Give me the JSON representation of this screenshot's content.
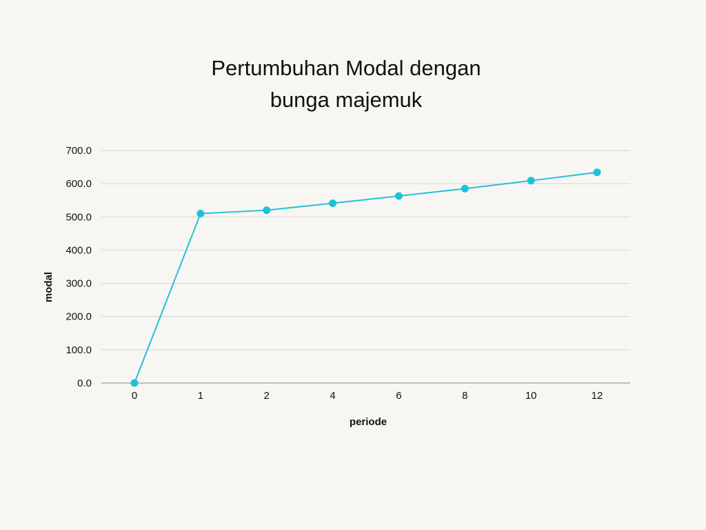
{
  "chart_data": {
    "type": "line",
    "title_lines": [
      "Pertumbuhan Modal dengan",
      "bunga majemuk"
    ],
    "xlabel": "periode",
    "ylabel": "modal",
    "categories": [
      "0",
      "1",
      "2",
      "4",
      "6",
      "8",
      "10",
      "12"
    ],
    "series": [
      {
        "values": [
          0,
          510,
          520,
          541,
          563,
          585,
          609,
          634
        ]
      }
    ],
    "ylim": [
      0,
      700
    ],
    "yticks": [
      "0.0",
      "100.0",
      "200.0",
      "300.0",
      "400.0",
      "500.0",
      "600.0",
      "700.0"
    ],
    "grid": true,
    "legend": "none",
    "colors": {
      "line": "#22c1d6",
      "marker": "#1cc3d8",
      "grid": "#d6d3ce",
      "axis": "#8a8782",
      "background": "#f8f6f2"
    }
  }
}
